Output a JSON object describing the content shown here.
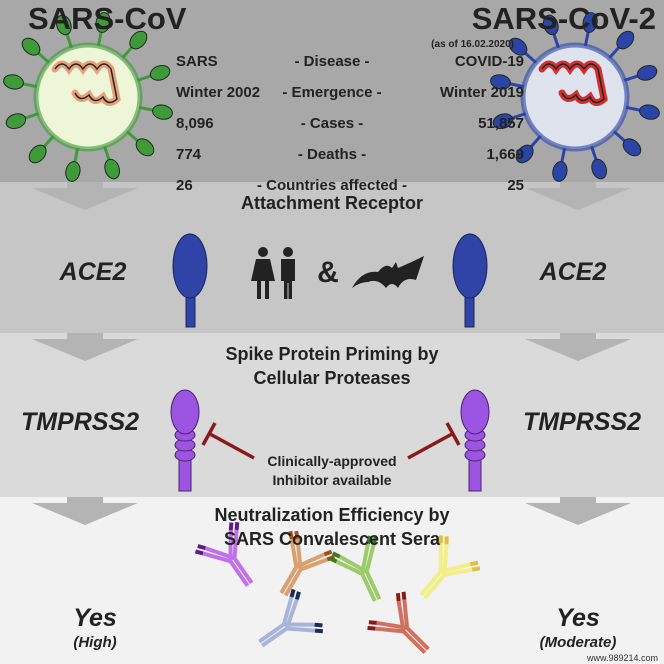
{
  "left_virus": {
    "name": "SARS-CoV",
    "color": "#3f9a3a",
    "fill": "#eef6d8"
  },
  "right_virus": {
    "name": "SARS-CoV-2",
    "color": "#2c44a8",
    "fill": "#dfe3ee"
  },
  "date_note": "(as of 16.02.2020)",
  "comparison": [
    {
      "left": "SARS",
      "label": "- Disease -",
      "right": "COVID-19"
    },
    {
      "left": "Winter 2002",
      "label": "- Emergence -",
      "right": "Winter 2019"
    },
    {
      "left": "8,096",
      "label": "- Cases -",
      "right": "51,857"
    },
    {
      "left": "774",
      "label": "- Deaths -",
      "right": "1,669"
    },
    {
      "left": "26",
      "label": "- Countries affected -",
      "right": "25"
    }
  ],
  "receptor": {
    "heading": "Attachment Receptor",
    "left": "ACE2",
    "right": "ACE2",
    "amp": "&",
    "receptor_color": "#2f44a6"
  },
  "priming": {
    "heading_line1": "Spike Protein Priming by",
    "heading_line2": "Cellular Proteases",
    "left": "TMPRSS2",
    "right": "TMPRSS2",
    "inhibitor_line1": "Clinically-approved",
    "inhibitor_line2": "Inhibitor available",
    "protease_color": "#9b55e0",
    "inhibitor_color": "#8b1a1a"
  },
  "neutralization": {
    "heading_line1": "Neutralization Efficiency by",
    "heading_line2": "SARS Convalescent Sera",
    "left": "Yes",
    "left_sub": "(High)",
    "right": "Yes",
    "right_sub": "(Moderate)"
  },
  "band_colors": [
    "#a8a8a8",
    "#c6c6c6",
    "#dadada",
    "#f2f2f2"
  ],
  "watermark": "www.989214.com"
}
